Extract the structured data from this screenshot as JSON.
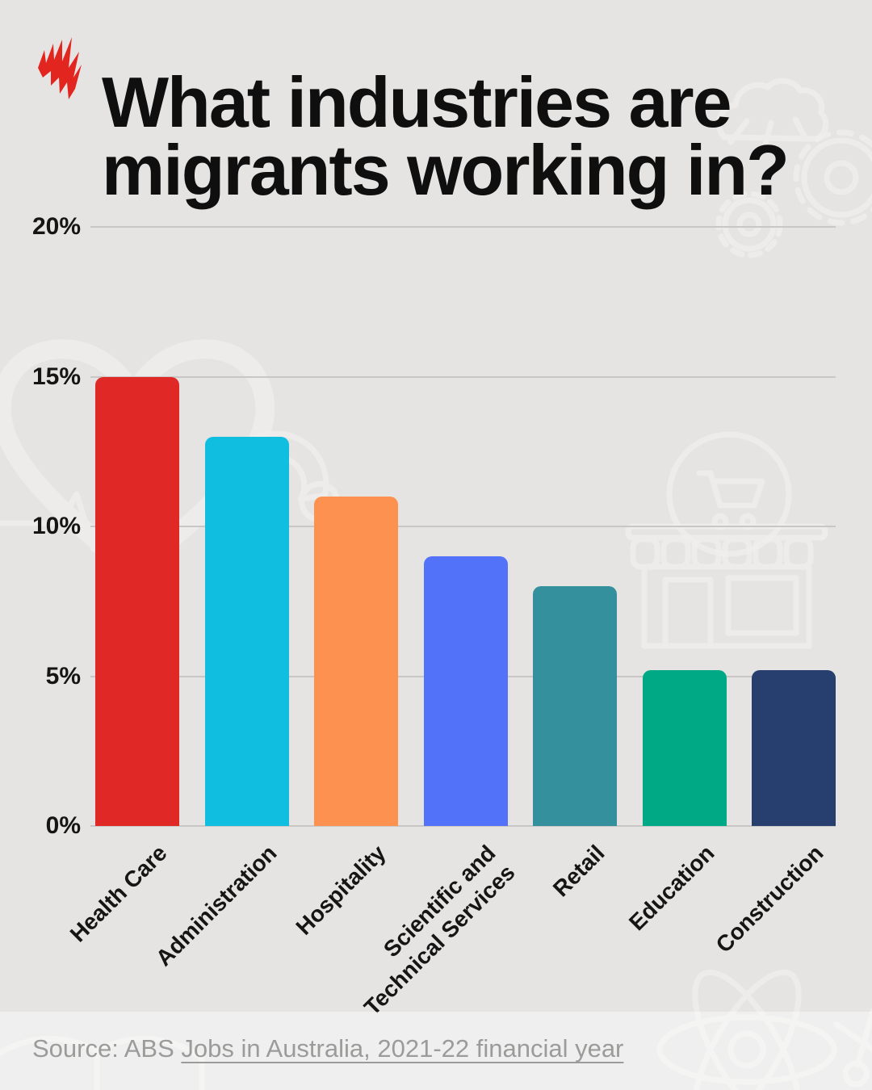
{
  "header": {
    "title": "What industries are migrants working in?",
    "logo_name": "sbs-mercury-logo"
  },
  "chart_data": {
    "type": "bar",
    "title": "What industries are migrants working in?",
    "categories": [
      "Health Care",
      "Administration",
      "Hospitality",
      "Scientific and Technical Services",
      "Retail",
      "Education",
      "Construction"
    ],
    "category_label_lines": [
      [
        "Health Care"
      ],
      [
        "Administration"
      ],
      [
        "Hospitality"
      ],
      [
        "Scientific and",
        "Technical Services"
      ],
      [
        "Retail"
      ],
      [
        "Education"
      ],
      [
        "Construction"
      ]
    ],
    "values": [
      15,
      13,
      11,
      9,
      8,
      5.2,
      5.2
    ],
    "unit": "%",
    "bar_colors": [
      "#e02827",
      "#10bfe0",
      "#fd9150",
      "#5272fa",
      "#35909e",
      "#00a985",
      "#273f6f"
    ],
    "y_ticks": [
      {
        "label": "20%",
        "value": 20
      },
      {
        "label": "15%",
        "value": 15
      },
      {
        "label": "10%",
        "value": 10
      },
      {
        "label": "5%",
        "value": 5
      },
      {
        "label": "0%",
        "value": 0
      }
    ],
    "ylim": [
      0,
      20
    ],
    "grid": true,
    "legend_position": "none",
    "xlabel": "",
    "ylabel": ""
  },
  "footer": {
    "source_prefix": "Source: ABS ",
    "source_link": "Jobs in Australia, 2021-22 financial year"
  },
  "theme": {
    "background": "#e5e4e3",
    "title_color": "#0f0f0f",
    "axis_text_color": "#151515",
    "gridline_color": "#c8c7c6",
    "source_color": "#9b9b9a",
    "logo_color": "#e2251f",
    "watermark_color": "#f0efee"
  },
  "watermark_icons": [
    "heart-pulse",
    "phone-handset",
    "brain",
    "gear",
    "gear",
    "shopping-cart-circle",
    "storefront",
    "open-book",
    "atom",
    "scissors"
  ]
}
